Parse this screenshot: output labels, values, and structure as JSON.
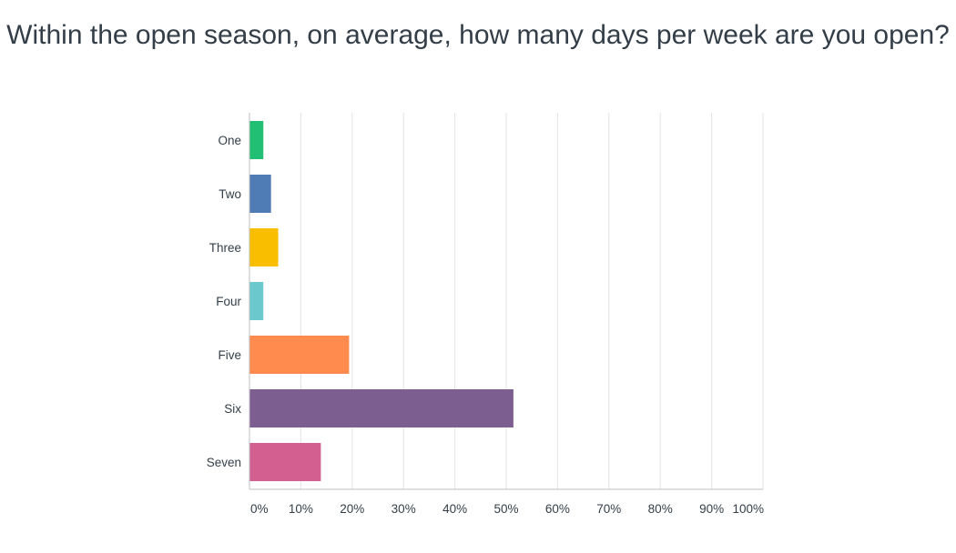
{
  "chart_data": {
    "type": "bar",
    "orientation": "horizontal",
    "title": "Within the open season, on average, how many days per week are you open?",
    "categories": [
      "One",
      "Two",
      "Three",
      "Four",
      "Five",
      "Six",
      "Seven"
    ],
    "values": [
      2.7,
      4.2,
      5.6,
      2.7,
      19.4,
      51.4,
      13.9
    ],
    "colors": [
      "#21bf73",
      "#507cb6",
      "#f9be00",
      "#6bc8cd",
      "#ff8b4f",
      "#7d5e90",
      "#d25f90"
    ],
    "xlim": [
      0,
      100
    ],
    "xticks": [
      "0%",
      "10%",
      "20%",
      "30%",
      "40%",
      "50%",
      "60%",
      "70%",
      "80%",
      "90%",
      "100%"
    ],
    "grid": true
  }
}
